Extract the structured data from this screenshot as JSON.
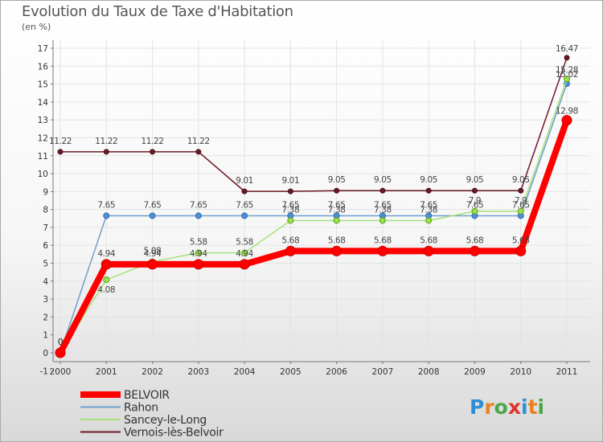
{
  "chart_data": {
    "type": "line",
    "title": "Evolution du Taux de Taxe d'Habitation",
    "subtitle": "(en %)",
    "xlabel": "",
    "ylabel": "",
    "x": [
      "2000",
      "2001",
      "2002",
      "2003",
      "2004",
      "2005",
      "2006",
      "2007",
      "2008",
      "2009",
      "2010",
      "2011"
    ],
    "ylim": [
      -1,
      17
    ],
    "yticks": [
      "-1",
      "0",
      "1",
      "2",
      "3",
      "4",
      "5",
      "6",
      "7",
      "8",
      "9",
      "10",
      "11",
      "12",
      "13",
      "14",
      "15",
      "16",
      "17"
    ],
    "grid": true,
    "legend_position": "bottom-left",
    "series": [
      {
        "name": "Vernois-lès-Belvoir",
        "color": "#6b1a24",
        "values": [
          11.22,
          11.22,
          11.22,
          11.22,
          9.01,
          9.01,
          9.05,
          9.05,
          9.05,
          9.05,
          9.05,
          16.47
        ],
        "labels": [
          "11.22",
          "11.22",
          "11.22",
          "11.22",
          "9.01",
          "9.01",
          "9.05",
          "9.05",
          "9.05",
          "9.05",
          "9.05",
          "16.47"
        ]
      },
      {
        "name": "Rahon",
        "color": "#6f9fd0",
        "values": [
          0,
          7.65,
          7.65,
          7.65,
          7.65,
          7.65,
          7.65,
          7.65,
          7.65,
          7.65,
          7.65,
          15.02
        ],
        "labels": [
          "0",
          "7.65",
          "7.65",
          "7.65",
          "7.65",
          "7.65",
          "7.65",
          "7.65",
          "7.65",
          "7.65",
          "7.65",
          "15.02"
        ]
      },
      {
        "name": "Sancey-le-Long",
        "color": "#a6e27a",
        "values": [
          0,
          4.08,
          5.08,
          5.58,
          5.58,
          7.38,
          7.38,
          7.38,
          7.38,
          7.9,
          7.9,
          15.28
        ],
        "labels": [
          "0",
          "4.08",
          "5.08",
          "5.58",
          "5.58",
          "7.38",
          "7.38",
          "7.38",
          "7.38",
          "7.9",
          "7.9",
          "15.28"
        ]
      },
      {
        "name": "BELVOIR",
        "color": "#ff0000",
        "values": [
          0,
          4.94,
          4.94,
          4.94,
          4.94,
          5.68,
          5.68,
          5.68,
          5.68,
          5.68,
          5.68,
          12.98
        ],
        "labels": [
          "0",
          "4.94",
          "4.94",
          "4.94",
          "4.94",
          "5.68",
          "5.68",
          "5.68",
          "5.68",
          "5.68",
          "5.68",
          "12.98"
        ]
      }
    ],
    "legend": [
      "BELVOIR",
      "Rahon",
      "Sancey-le-Long",
      "Vernois-lès-Belvoir"
    ]
  },
  "logo": {
    "text": "Proxiti"
  }
}
